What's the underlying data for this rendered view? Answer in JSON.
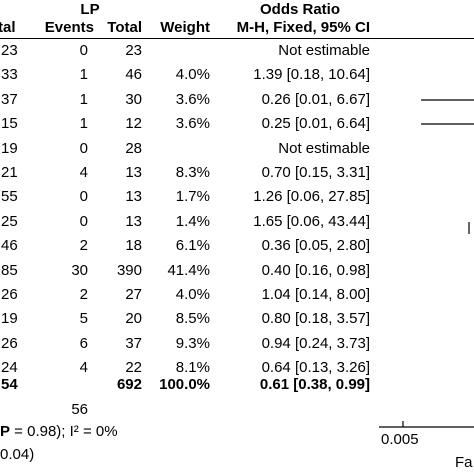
{
  "chart_data": {
    "type": "table",
    "group_header": "LP",
    "effect_header": "Odds Ratio",
    "columns": {
      "control_total_fragment": "tal",
      "events": "Events",
      "total": "Total",
      "weight": "Weight",
      "ci": "M-H, Fixed, 95% CI"
    },
    "rows": [
      {
        "ctrl_total": "23",
        "events": "0",
        "total": "23",
        "weight": "",
        "ci": "Not estimable"
      },
      {
        "ctrl_total": "33",
        "events": "1",
        "total": "46",
        "weight": "4.0%",
        "ci": "1.39 [0.18, 10.64]"
      },
      {
        "ctrl_total": "37",
        "events": "1",
        "total": "30",
        "weight": "3.6%",
        "ci": "0.26 [0.01, 6.67]"
      },
      {
        "ctrl_total": "15",
        "events": "1",
        "total": "12",
        "weight": "3.6%",
        "ci": "0.25 [0.01, 6.64]"
      },
      {
        "ctrl_total": "19",
        "events": "0",
        "total": "28",
        "weight": "",
        "ci": "Not estimable"
      },
      {
        "ctrl_total": "21",
        "events": "4",
        "total": "13",
        "weight": "8.3%",
        "ci": "0.70 [0.15, 3.31]"
      },
      {
        "ctrl_total": "55",
        "events": "0",
        "total": "13",
        "weight": "1.7%",
        "ci": "1.26 [0.06, 27.85]"
      },
      {
        "ctrl_total": "25",
        "events": "0",
        "total": "13",
        "weight": "1.4%",
        "ci": "1.65 [0.06, 43.44]"
      },
      {
        "ctrl_total": "46",
        "events": "2",
        "total": "18",
        "weight": "6.1%",
        "ci": "0.36 [0.05, 2.80]"
      },
      {
        "ctrl_total": "85",
        "events": "30",
        "total": "390",
        "weight": "41.4%",
        "ci": "0.40 [0.16, 0.98]"
      },
      {
        "ctrl_total": "26",
        "events": "2",
        "total": "27",
        "weight": "4.0%",
        "ci": "1.04 [0.14, 8.00]"
      },
      {
        "ctrl_total": "19",
        "events": "5",
        "total": "20",
        "weight": "8.5%",
        "ci": "0.80 [0.18, 3.57]"
      },
      {
        "ctrl_total": "26",
        "events": "6",
        "total": "37",
        "weight": "9.3%",
        "ci": "0.94 [0.24, 3.73]"
      },
      {
        "ctrl_total": "24",
        "events": "4",
        "total": "22",
        "weight": "8.1%",
        "ci": "0.64 [0.13, 3.26]"
      }
    ],
    "total_row": {
      "ctrl_total": "54",
      "total": "692",
      "weight": "100.0%",
      "ci": "0.61 [0.38, 0.99]"
    },
    "total_events": "56",
    "heterogeneity_fragment": "P = 0.98); I² = 0%",
    "overall_effect_fragment": "0.04)",
    "axis": {
      "tick_label": "0.005",
      "favours_fragment": "Fa"
    },
    "visible_ci_whiskers": [
      {
        "row": 2,
        "lower": 0.01,
        "upper": 6.67
      },
      {
        "row": 3,
        "lower": 0.01,
        "upper": 6.64
      }
    ]
  }
}
